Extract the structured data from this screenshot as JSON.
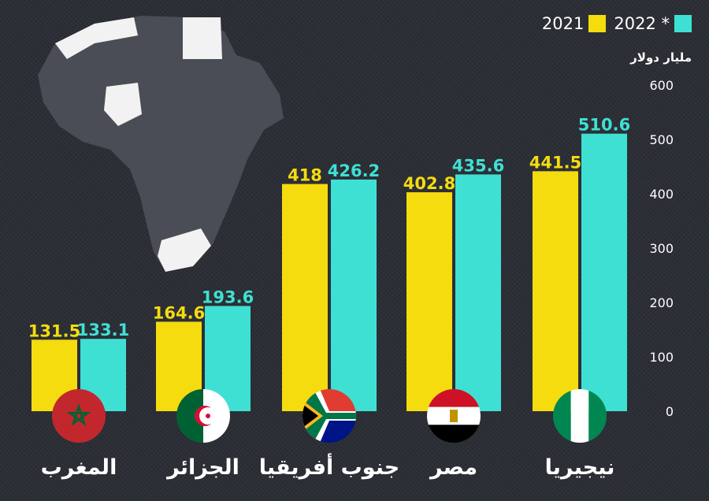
{
  "colors": {
    "background": "#2a2c33",
    "series_2021": "#f4dc0e",
    "series_2022": "#3ee0d4",
    "text": "#ffffff",
    "map": "#4a4d56",
    "map_highlight": "#f2f2f2"
  },
  "legend": {
    "label_2022": "2022 *",
    "label_2021": "2021"
  },
  "unit_label": "مليار دولار",
  "chart_data": {
    "type": "bar",
    "categories": [
      "المغرب",
      "الجزائر",
      "جنوب أفريقيا",
      "مصر",
      "نيجيريا"
    ],
    "series": [
      {
        "name": "2021",
        "values": [
          131.5,
          164.6,
          418,
          402.8,
          441.5
        ]
      },
      {
        "name": "2022 *",
        "values": [
          133.1,
          193.6,
          426.2,
          435.6,
          510.6
        ]
      }
    ],
    "y_ticks": [
      "0",
      "100",
      "200",
      "300",
      "400",
      "500",
      "600"
    ],
    "ylim": [
      0,
      600
    ],
    "ylabel": "مليار دولار",
    "flags": [
      "morocco-flag-icon",
      "algeria-flag-icon",
      "south-africa-flag-icon",
      "egypt-flag-icon",
      "nigeria-flag-icon"
    ],
    "grid": false,
    "legend_position": "top-right"
  }
}
